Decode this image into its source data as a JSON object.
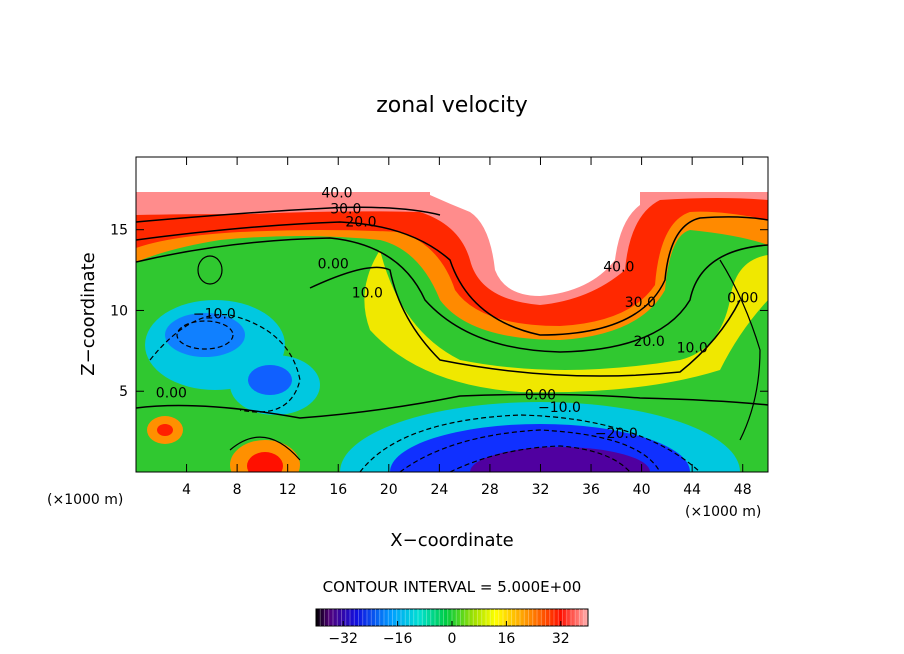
{
  "chart_data": {
    "type": "heatmap",
    "title": "zonal velocity",
    "xlabel": "X−coordinate",
    "ylabel": "Z−coordinate",
    "x_unit_label": "(×1000 m)",
    "y_unit_label": "(×1000 m)",
    "xlim": [
      0,
      50
    ],
    "ylim": [
      0,
      19.5
    ],
    "x_ticks": [
      "4",
      "8",
      "12",
      "16",
      "20",
      "24",
      "28",
      "32",
      "36",
      "40",
      "44",
      "48"
    ],
    "x_tick_values": [
      4,
      8,
      12,
      16,
      20,
      24,
      28,
      32,
      36,
      40,
      44,
      48
    ],
    "y_ticks": [
      "5",
      "10",
      "15"
    ],
    "y_tick_values": [
      5,
      10,
      15
    ],
    "contour_interval_text": "CONTOUR INTERVAL = 5.000E+00",
    "contour_interval": 5.0,
    "colorbar": {
      "range": [
        -40,
        40
      ],
      "ticks": [
        "−32",
        "−16",
        "0",
        "16",
        "32"
      ],
      "tick_values": [
        -32,
        -16,
        0,
        16,
        32
      ]
    },
    "contour_labels": [
      {
        "text": "40.0",
        "x": 15.9,
        "y": 17.0
      },
      {
        "text": "30.0",
        "x": 16.6,
        "y": 16.0
      },
      {
        "text": "20.0",
        "x": 17.8,
        "y": 15.2
      },
      {
        "text": "0.00",
        "x": 15.6,
        "y": 12.6
      },
      {
        "text": "10.0",
        "x": 18.3,
        "y": 10.8
      },
      {
        "text": "−10.0",
        "x": 6.2,
        "y": 9.5
      },
      {
        "text": "0.00",
        "x": 2.8,
        "y": 4.6
      },
      {
        "text": "40.0",
        "x": 38.2,
        "y": 12.4
      },
      {
        "text": "30.0",
        "x": 39.9,
        "y": 10.2
      },
      {
        "text": "20.0",
        "x": 40.6,
        "y": 7.8
      },
      {
        "text": "10.0",
        "x": 44.0,
        "y": 7.4
      },
      {
        "text": "0.00",
        "x": 48.0,
        "y": 10.5
      },
      {
        "text": "0.00",
        "x": 32.0,
        "y": 4.5
      },
      {
        "text": "−10.0",
        "x": 33.5,
        "y": 3.7
      },
      {
        "text": "−20.0",
        "x": 38.0,
        "y": 2.1
      }
    ]
  }
}
